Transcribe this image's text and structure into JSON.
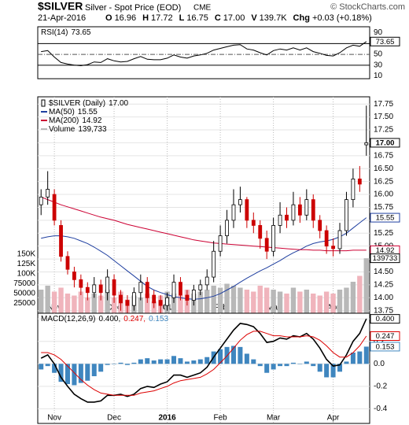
{
  "header": {
    "symbol": "$SILVER",
    "name": "Silver - Spot Price (EOD)",
    "exchange": "CME",
    "credit": "© StockCharts.com",
    "date": "21-Apr-2016",
    "quote": [
      {
        "key": "O",
        "value": "16.96"
      },
      {
        "key": "H",
        "value": "17.72"
      },
      {
        "key": "L",
        "value": "16.75"
      },
      {
        "key": "C",
        "value": "17.00"
      },
      {
        "key": "V",
        "value": "139.7K"
      },
      {
        "key": "Chg",
        "value": "+0.03 (+0.18%)"
      }
    ]
  },
  "chart_data": [
    {
      "type": "line",
      "ylim": [
        5,
        101
      ],
      "yticks": [
        10,
        30,
        50,
        70,
        90
      ],
      "overbought": 70,
      "oversold": 30,
      "midline": 50,
      "series": [
        {
          "name": "RSI(14)",
          "color": "#000000",
          "values": [
            55,
            57,
            45,
            35,
            32,
            30,
            29,
            31,
            36,
            35,
            42,
            38,
            36,
            37,
            42,
            46,
            41,
            40,
            40,
            43,
            49,
            45,
            43,
            47,
            49,
            52,
            58,
            61,
            64,
            67,
            68,
            60,
            58,
            53,
            49,
            57,
            60,
            58,
            62,
            58,
            62,
            55,
            52,
            48,
            47,
            53,
            62,
            67,
            65,
            73.65
          ]
        }
      ]
    },
    {
      "type": "candlestick",
      "name": "$SILVER (Daily)",
      "tag": "17.00",
      "up_color": "#000000",
      "down_color": "#cc0000",
      "grid": true,
      "ylim": [
        13.7,
        17.89
      ],
      "yticks": [
        13.75,
        {
          "value": 14,
          "label": "14.00"
        },
        14.25,
        {
          "value": 14.5,
          "label": "14.50"
        },
        14.75,
        {
          "value": 15,
          "label": "15.00"
        },
        15.25,
        {
          "value": 15.5,
          "label": "15.50"
        },
        15.75,
        {
          "value": 16,
          "label": "16.00"
        },
        16.25,
        {
          "value": 16.5,
          "label": "16.50"
        },
        16.75,
        {
          "value": 17,
          "label": "17.00"
        },
        17.25,
        {
          "value": 17.5,
          "label": "17.50"
        },
        17.75
      ],
      "y2lim": [
        0,
        550000
      ],
      "y2ticks": [
        25000,
        50000,
        75000,
        {
          "value": 100000,
          "label": "100K"
        },
        {
          "value": 125000,
          "label": "125K"
        },
        {
          "value": 150000,
          "label": "150K"
        }
      ],
      "categories": [
        null,
        null,
        "Nov",
        null,
        null,
        null,
        null,
        null,
        null,
        null,
        null,
        "Dec",
        null,
        null,
        null,
        null,
        null,
        null,
        null,
        "2016",
        null,
        null,
        null,
        null,
        null,
        null,
        null,
        "Feb",
        null,
        null,
        null,
        null,
        null,
        null,
        null,
        "Mar",
        null,
        null,
        null,
        null,
        null,
        null,
        null,
        null,
        "Apr",
        null,
        null,
        null,
        null,
        null
      ],
      "open": [
        15.8,
        15.95,
        16.0,
        15.4,
        14.8,
        14.5,
        14.35,
        14.2,
        14.1,
        14.25,
        14.1,
        14.35,
        14.05,
        13.95,
        13.85,
        14.1,
        14.3,
        14.05,
        13.95,
        13.85,
        14.0,
        14.3,
        14.05,
        13.95,
        14.15,
        14.25,
        14.4,
        14.9,
        15.2,
        15.5,
        15.8,
        15.9,
        15.5,
        15.4,
        15.15,
        14.9,
        15.4,
        15.6,
        15.5,
        15.8,
        15.6,
        15.9,
        15.5,
        15.3,
        15.0,
        14.95,
        15.3,
        15.9,
        16.3,
        16.96
      ],
      "high": [
        16.1,
        16.45,
        16.1,
        15.5,
        14.9,
        14.6,
        14.45,
        14.3,
        14.4,
        14.35,
        14.55,
        14.45,
        14.15,
        14.05,
        14.2,
        14.45,
        14.4,
        14.15,
        14.05,
        14.1,
        14.45,
        14.4,
        14.15,
        14.25,
        14.35,
        14.55,
        15.1,
        15.4,
        15.7,
        16.1,
        16.15,
        15.95,
        15.65,
        15.5,
        15.3,
        15.55,
        15.85,
        15.75,
        16.05,
        15.95,
        16.1,
        16.0,
        15.6,
        15.4,
        15.15,
        15.45,
        16.05,
        16.5,
        16.55,
        17.72
      ],
      "low": [
        15.6,
        15.8,
        15.4,
        14.7,
        14.45,
        14.2,
        14.05,
        13.95,
        14.0,
        13.95,
        13.95,
        13.9,
        13.75,
        13.7,
        13.75,
        13.95,
        13.9,
        13.8,
        13.7,
        13.75,
        13.9,
        13.95,
        13.85,
        13.85,
        14.05,
        14.15,
        14.3,
        14.8,
        15.05,
        15.35,
        15.65,
        15.35,
        15.25,
        14.95,
        14.75,
        14.8,
        15.25,
        15.35,
        15.4,
        15.45,
        15.5,
        15.35,
        15.15,
        14.85,
        14.8,
        14.85,
        15.2,
        15.75,
        16.05,
        16.75
      ],
      "close": [
        15.95,
        16.1,
        15.5,
        14.8,
        14.55,
        14.35,
        14.2,
        14.1,
        14.25,
        14.1,
        14.4,
        14.05,
        13.9,
        13.85,
        14.1,
        14.3,
        14.0,
        13.9,
        13.85,
        14.0,
        14.3,
        14.05,
        13.95,
        14.15,
        14.25,
        14.4,
        14.9,
        15.2,
        15.5,
        15.8,
        15.9,
        15.5,
        15.4,
        15.15,
        14.9,
        15.4,
        15.6,
        15.5,
        15.8,
        15.6,
        15.9,
        15.5,
        15.3,
        15.0,
        14.95,
        15.3,
        15.9,
        16.3,
        16.2,
        17.0
      ],
      "series": [
        {
          "name": "MA(50)",
          "color": "#1f3fa0",
          "values": [
            15.15,
            15.18,
            15.2,
            15.2,
            15.18,
            15.15,
            15.1,
            15.05,
            14.98,
            14.9,
            14.82,
            14.72,
            14.62,
            14.52,
            14.42,
            14.32,
            14.22,
            14.15,
            14.1,
            14.06,
            14.02,
            14.0,
            13.98,
            13.97,
            13.98,
            14.0,
            14.03,
            14.08,
            14.15,
            14.22,
            14.3,
            14.38,
            14.45,
            14.52,
            14.58,
            14.65,
            14.72,
            14.8,
            14.87,
            14.93,
            15.0,
            15.05,
            15.08,
            15.1,
            15.13,
            15.18,
            15.25,
            15.35,
            15.45,
            15.55
          ]
        },
        {
          "name": "MA(200)",
          "color": "#cc0033",
          "values": [
            15.95,
            15.9,
            15.85,
            15.8,
            15.76,
            15.72,
            15.68,
            15.64,
            15.6,
            15.56,
            15.53,
            15.5,
            15.46,
            15.42,
            15.39,
            15.36,
            15.33,
            15.3,
            15.27,
            15.24,
            15.21,
            15.18,
            15.15,
            15.12,
            15.1,
            15.08,
            15.06,
            15.05,
            15.04,
            15.03,
            15.02,
            15.01,
            15.0,
            14.99,
            14.98,
            14.97,
            14.96,
            14.95,
            14.94,
            14.93,
            14.93,
            14.92,
            14.92,
            14.91,
            14.91,
            14.91,
            14.91,
            14.92,
            14.92,
            14.92
          ]
        },
        {
          "name": "Volume",
          "axis": "y2",
          "color": "#b8b8b8",
          "down_color": "#f0b4bc",
          "legend_value": "139,733",
          "values": [
            60000,
            70000,
            55000,
            65000,
            50000,
            45000,
            55000,
            40000,
            50000,
            45000,
            60000,
            40000,
            55000,
            35000,
            45000,
            40000,
            50000,
            30000,
            45000,
            55000,
            50000,
            45000,
            60000,
            50000,
            55000,
            60000,
            70000,
            65000,
            75000,
            70000,
            65000,
            60000,
            55000,
            70000,
            65000,
            60000,
            55000,
            50000,
            65000,
            55000,
            60000,
            50000,
            45000,
            55000,
            50000,
            60000,
            65000,
            80000,
            95000,
            139733
          ]
        }
      ]
    },
    {
      "type": "combo",
      "label": "MACD(12,26,9)",
      "grid": true,
      "ylim": [
        -0.53,
        0.45
      ],
      "yticks": [
        0.4,
        0.2,
        {
          "value": 0,
          "label": "0.0"
        },
        -0.2,
        -0.4
      ],
      "categories": [
        null,
        null,
        "Nov",
        null,
        null,
        null,
        null,
        null,
        null,
        null,
        null,
        "Dec",
        null,
        null,
        null,
        null,
        null,
        null,
        null,
        "2016",
        null,
        null,
        null,
        null,
        null,
        null,
        null,
        "Feb",
        null,
        null,
        null,
        null,
        null,
        null,
        null,
        "Mar",
        null,
        null,
        null,
        null,
        null,
        null,
        null,
        null,
        "Apr",
        null,
        null,
        null,
        null,
        null
      ],
      "series": [
        {
          "type": "bar",
          "color": "#3f86bf",
          "legend": "0.153",
          "values": [
            -0.05,
            -0.02,
            -0.08,
            -0.16,
            -0.18,
            -0.19,
            -0.17,
            -0.15,
            -0.11,
            -0.07,
            -0.01,
            0.0,
            0.01,
            -0.01,
            0.01,
            0.04,
            0.05,
            0.03,
            0.04,
            0.04,
            0.07,
            0.05,
            0.02,
            0.03,
            0.04,
            0.06,
            0.11,
            0.13,
            0.15,
            0.16,
            0.15,
            0.09,
            0.04,
            -0.02,
            -0.08,
            -0.05,
            -0.02,
            -0.02,
            0.01,
            0.0,
            0.02,
            -0.02,
            -0.07,
            -0.12,
            -0.12,
            -0.07,
            0.02,
            0.1,
            0.11,
            0.153
          ]
        },
        {
          "type": "line",
          "color": "#000000",
          "legend": "0.400,",
          "tag": "0.400",
          "values": [
            0.05,
            0.08,
            0.0,
            -0.12,
            -0.2,
            -0.27,
            -0.31,
            -0.34,
            -0.34,
            -0.33,
            -0.28,
            -0.28,
            -0.27,
            -0.29,
            -0.27,
            -0.22,
            -0.2,
            -0.21,
            -0.18,
            -0.16,
            -0.1,
            -0.1,
            -0.12,
            -0.1,
            -0.08,
            -0.03,
            0.06,
            0.14,
            0.22,
            0.3,
            0.36,
            0.35,
            0.33,
            0.27,
            0.19,
            0.2,
            0.23,
            0.22,
            0.25,
            0.24,
            0.27,
            0.22,
            0.14,
            0.04,
            -0.02,
            -0.01,
            0.08,
            0.2,
            0.27,
            0.4
          ]
        },
        {
          "type": "line",
          "color": "#dd0000",
          "legend": "0.247,",
          "values": [
            0.1,
            0.1,
            0.08,
            0.04,
            -0.02,
            -0.08,
            -0.14,
            -0.19,
            -0.23,
            -0.26,
            -0.27,
            -0.28,
            -0.28,
            -0.28,
            -0.28,
            -0.26,
            -0.25,
            -0.24,
            -0.22,
            -0.2,
            -0.17,
            -0.15,
            -0.14,
            -0.13,
            -0.12,
            -0.09,
            -0.05,
            0.01,
            0.07,
            0.14,
            0.21,
            0.26,
            0.29,
            0.29,
            0.27,
            0.25,
            0.25,
            0.24,
            0.24,
            0.24,
            0.25,
            0.24,
            0.21,
            0.16,
            0.1,
            0.06,
            0.06,
            0.1,
            0.16,
            0.247
          ]
        }
      ]
    }
  ]
}
